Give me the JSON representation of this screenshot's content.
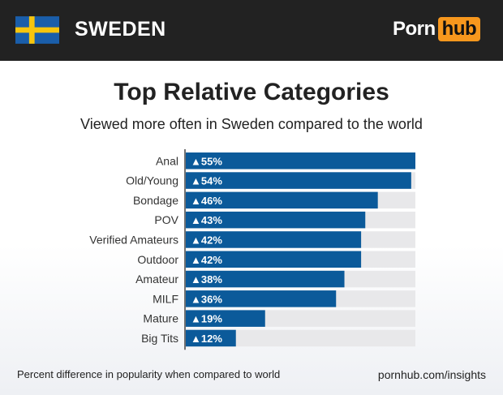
{
  "header": {
    "country": "SWEDEN",
    "logo_left": "Porn",
    "logo_right": "hub"
  },
  "colors": {
    "flag_blue": "#1a5eaa",
    "flag_yellow": "#f6c50e",
    "bar": "#0b5a9a",
    "track": "#e8e8ea",
    "accent": "#f7971d"
  },
  "footer": {
    "note": "Percent difference in popularity when compared to world",
    "site": "pornhub.com/insights"
  },
  "chart_data": {
    "type": "bar",
    "orientation": "horizontal",
    "title": "Top Relative Categories",
    "subtitle": "Viewed more often in Sweden compared to the world",
    "categories": [
      "Anal",
      "Old/Young",
      "Bondage",
      "POV",
      "Verified Amateurs",
      "Outdoor",
      "Amateur",
      "MILF",
      "Mature",
      "Big Tits"
    ],
    "values": [
      55,
      54,
      46,
      43,
      42,
      42,
      38,
      36,
      19,
      12
    ],
    "labels": [
      "▲55%",
      "▲54%",
      "▲46%",
      "▲43%",
      "▲42%",
      "▲42%",
      "▲38%",
      "▲36%",
      "▲19%",
      "▲12%"
    ],
    "xlim": [
      0,
      55
    ],
    "grid": false,
    "legend": "none"
  }
}
